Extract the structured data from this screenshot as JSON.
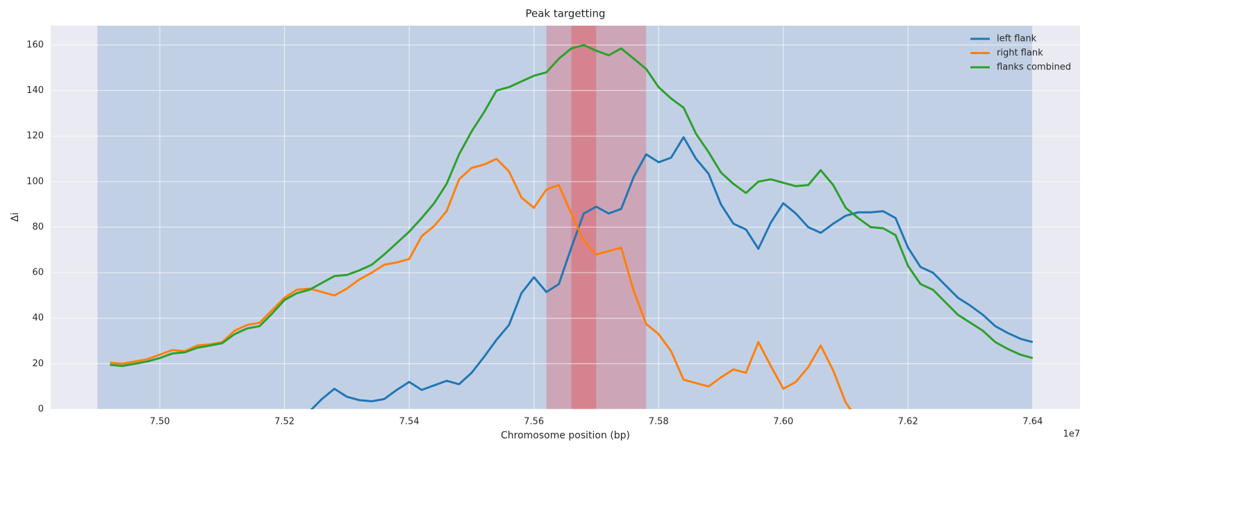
{
  "chart_data": {
    "type": "line",
    "title": "Peak targetting",
    "xlabel": "Chromosome position (bp)",
    "ylabel": "Δi",
    "x_offset_label": "1e7",
    "x": [
      7.492,
      7.494,
      7.496,
      7.498,
      7.5,
      7.502,
      7.504,
      7.506,
      7.508,
      7.51,
      7.512,
      7.514,
      7.516,
      7.518,
      7.52,
      7.522,
      7.524,
      7.526,
      7.528,
      7.53,
      7.532,
      7.534,
      7.536,
      7.538,
      7.54,
      7.542,
      7.544,
      7.546,
      7.548,
      7.55,
      7.552,
      7.554,
      7.556,
      7.558,
      7.56,
      7.562,
      7.564,
      7.566,
      7.568,
      7.57,
      7.572,
      7.574,
      7.576,
      7.578,
      7.58,
      7.582,
      7.584,
      7.586,
      7.588,
      7.59,
      7.592,
      7.594,
      7.596,
      7.598,
      7.6,
      7.602,
      7.604,
      7.606,
      7.608,
      7.61,
      7.612,
      7.614,
      7.616,
      7.618,
      7.62,
      7.622,
      7.624,
      7.626,
      7.628,
      7.63,
      7.632,
      7.634,
      7.636,
      7.638,
      7.64
    ],
    "series": [
      {
        "name": "left flank",
        "color": "#1f77b4",
        "values": [
          null,
          null,
          null,
          null,
          null,
          null,
          null,
          null,
          null,
          null,
          null,
          null,
          null,
          null,
          null,
          null,
          -1,
          4.5,
          9,
          5.5,
          4,
          3.5,
          4.5,
          8.5,
          12,
          8.5,
          10.5,
          12.5,
          11,
          16,
          23,
          30.5,
          37,
          51,
          58,
          51.5,
          55,
          71,
          86,
          89,
          86,
          88,
          102,
          112,
          108.5,
          110.5,
          119.5,
          110,
          103.5,
          90,
          81.5,
          79,
          70.5,
          82,
          90.5,
          86,
          80,
          77.5,
          81.5,
          85,
          86.5,
          86.5,
          87,
          84,
          71,
          62.5,
          60,
          54.5,
          49,
          45.5,
          41.5,
          36.5,
          33.5,
          31,
          29.5
        ]
      },
      {
        "name": "right flank",
        "color": "#ff7f0e",
        "values": [
          20.5,
          20,
          21,
          22,
          24,
          26,
          25.5,
          28,
          28.5,
          29.5,
          34.5,
          37,
          38,
          43.5,
          49,
          52.5,
          53,
          51.5,
          50,
          53,
          57,
          60,
          63.5,
          64.5,
          66,
          76,
          80.5,
          87,
          101,
          106,
          107.5,
          110,
          104.5,
          93,
          88.5,
          96.5,
          98.5,
          86,
          74,
          68,
          69.5,
          71,
          52,
          37.5,
          33,
          25.5,
          13,
          11.5,
          10,
          14,
          17.5,
          16,
          29.5,
          19,
          9,
          12,
          18.5,
          28,
          17,
          3,
          -5,
          null,
          null,
          null,
          null,
          null,
          null,
          null,
          null,
          null,
          null,
          null,
          null,
          null,
          null
        ]
      },
      {
        "name": "flanks combined",
        "color": "#2ca02c",
        "values": [
          19.5,
          19,
          20,
          21,
          22.5,
          24.5,
          25,
          27,
          28,
          29,
          33,
          35.5,
          36.5,
          42,
          48,
          51,
          52.5,
          55.5,
          58.5,
          59,
          61,
          63.5,
          68,
          73,
          78,
          84,
          90.5,
          99,
          112,
          122,
          130.5,
          140,
          141.5,
          144,
          146.5,
          148,
          154,
          158.5,
          160,
          157.5,
          155.5,
          158.5,
          154,
          149.5,
          141.5,
          136.5,
          132.5,
          121,
          113,
          104,
          99,
          95,
          100,
          101,
          99.5,
          98,
          98.5,
          105,
          98.5,
          88.5,
          84,
          80,
          79.5,
          76.5,
          63,
          55,
          52.5,
          47,
          41.5,
          38,
          34.5,
          29.5,
          26.5,
          24,
          22.5
        ]
      }
    ],
    "spans": [
      {
        "start": 7.49,
        "end": 7.64,
        "color": "#4c82c0",
        "opacity": 0.25
      },
      {
        "start": 7.562,
        "end": 7.578,
        "color": "#e05a5f",
        "opacity": 0.35
      },
      {
        "start": 7.566,
        "end": 7.57,
        "color": "#e05a5f",
        "opacity": 0.45
      }
    ],
    "xlim": [
      7.4825,
      7.6476
    ],
    "ylim": [
      0,
      168.5
    ],
    "xticks": [
      {
        "value": 7.5,
        "label": "7.50"
      },
      {
        "value": 7.52,
        "label": "7.52"
      },
      {
        "value": 7.54,
        "label": "7.54"
      },
      {
        "value": 7.56,
        "label": "7.56"
      },
      {
        "value": 7.58,
        "label": "7.58"
      },
      {
        "value": 7.6,
        "label": "7.60"
      },
      {
        "value": 7.62,
        "label": "7.62"
      },
      {
        "value": 7.64,
        "label": "7.64"
      }
    ],
    "yticks": [
      0,
      20,
      40,
      60,
      80,
      100,
      120,
      140,
      160
    ],
    "grid": true,
    "legend": "upper right"
  }
}
